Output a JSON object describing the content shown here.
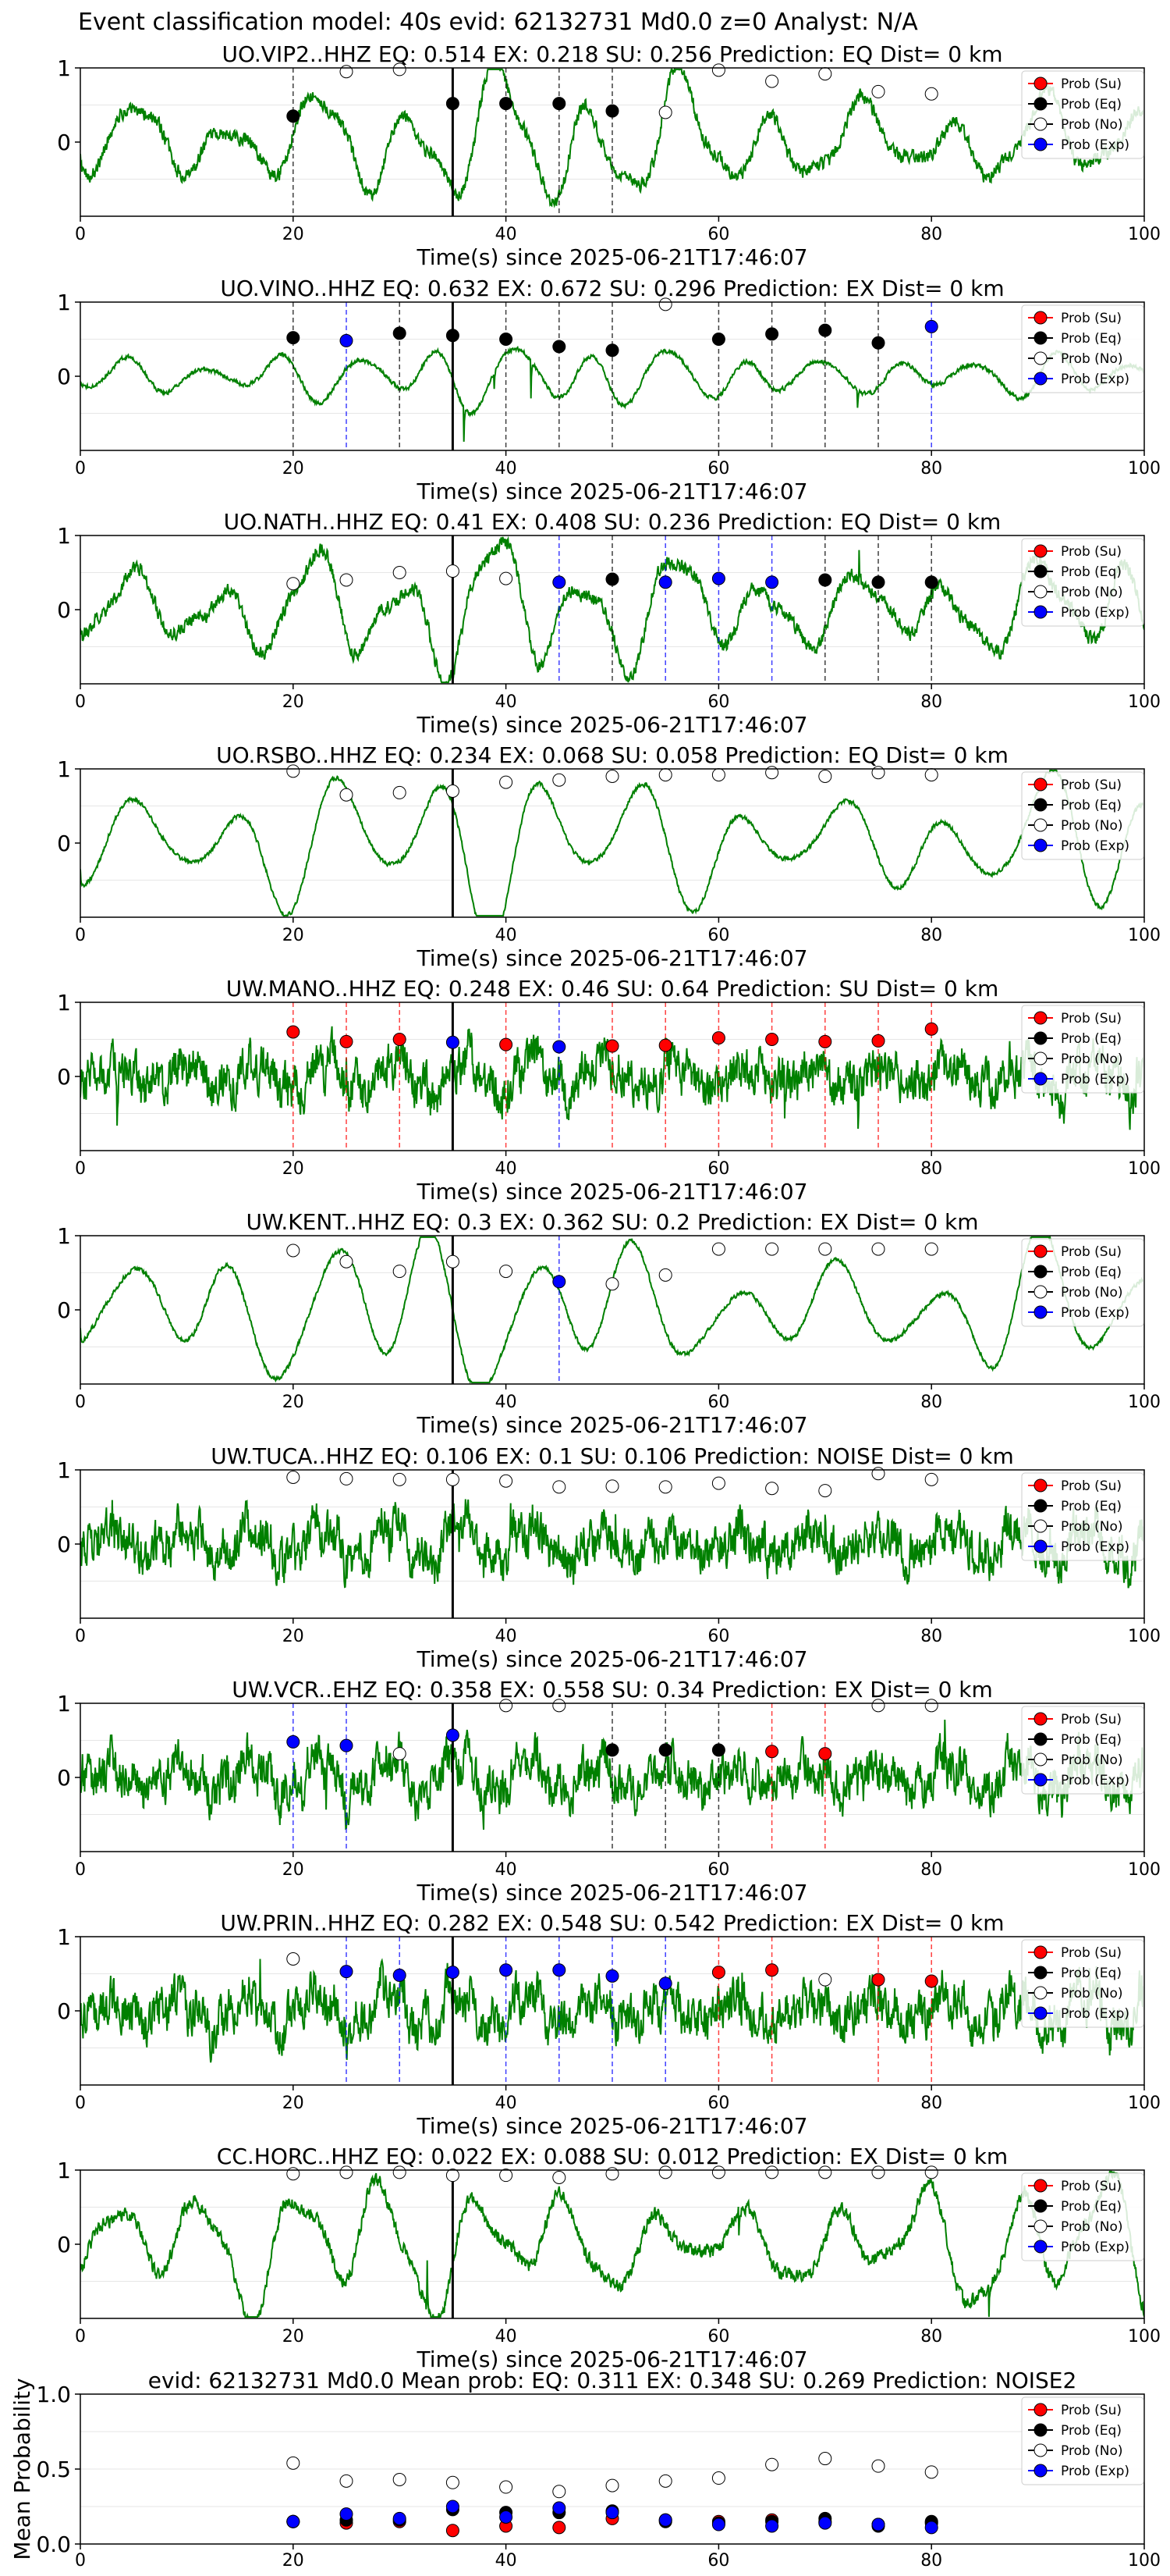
{
  "figure": {
    "suptitle": "Event classification model: 40s evid: 62132731 Md0.0 z=0 Analyst: N/A"
  },
  "legend": {
    "entries": [
      {
        "label": "Prob (Su)",
        "color": "#ff0000",
        "filled": true
      },
      {
        "label": "Prob (Eq)",
        "color": "#000000",
        "filled": true
      },
      {
        "label": "Prob (No)",
        "color": "#ffffff",
        "filled": false
      },
      {
        "label": "Prob (Exp)",
        "color": "#0000ff",
        "filled": true
      }
    ]
  },
  "colors": {
    "waveform": "#008000",
    "pick_line": "#000000",
    "su": "#ff0000",
    "eq": "#000000",
    "no": "#ffffff",
    "exp": "#0000ff",
    "axis": "#000000",
    "grid": "#e6e6e6"
  },
  "chart_data": [
    {
      "type": "line",
      "station": "UO.VIP2..HHZ",
      "title": "UO.VIP2..HHZ   EQ: 0.514  EX: 0.218  SU: 0.256   Prediction: EQ    Dist= 0 km",
      "xlabel": "Time(s) since 2025-06-21T17:46:07",
      "xlim": [
        0,
        100
      ],
      "ylim": [
        -1,
        1
      ],
      "xticks": [
        "0",
        "20",
        "40",
        "60",
        "80",
        "100"
      ],
      "yticks": [
        "1",
        "0"
      ],
      "waveform_style": "moderate",
      "pick_time": 35,
      "points": [
        {
          "x": 20,
          "y": 0.35,
          "cls": "eq"
        },
        {
          "x": 25,
          "y": 0.95,
          "cls": "no"
        },
        {
          "x": 30,
          "y": 0.98,
          "cls": "no"
        },
        {
          "x": 35,
          "y": 0.52,
          "cls": "eq"
        },
        {
          "x": 40,
          "y": 0.52,
          "cls": "eq"
        },
        {
          "x": 45,
          "y": 0.52,
          "cls": "eq"
        },
        {
          "x": 50,
          "y": 0.42,
          "cls": "eq"
        },
        {
          "x": 55,
          "y": 0.4,
          "cls": "no"
        },
        {
          "x": 60,
          "y": 0.97,
          "cls": "no"
        },
        {
          "x": 65,
          "y": 0.82,
          "cls": "no"
        },
        {
          "x": 70,
          "y": 0.92,
          "cls": "no"
        },
        {
          "x": 75,
          "y": 0.68,
          "cls": "no"
        },
        {
          "x": 80,
          "y": 0.65,
          "cls": "no"
        }
      ]
    },
    {
      "type": "line",
      "station": "UO.VINO..HHZ",
      "title": "UO.VINO..HHZ   EQ: 0.632  EX: 0.672  SU: 0.296   Prediction: EX    Dist= 0 km",
      "xlabel": "Time(s) since 2025-06-21T17:46:07",
      "xlim": [
        0,
        100
      ],
      "ylim": [
        -1,
        1
      ],
      "xticks": [
        "0",
        "20",
        "40",
        "60",
        "80",
        "100"
      ],
      "yticks": [
        "1",
        "0"
      ],
      "waveform_style": "low",
      "pick_time": 35,
      "points": [
        {
          "x": 20,
          "y": 0.52,
          "cls": "eq"
        },
        {
          "x": 25,
          "y": 0.48,
          "cls": "exp"
        },
        {
          "x": 30,
          "y": 0.58,
          "cls": "eq"
        },
        {
          "x": 35,
          "y": 0.55,
          "cls": "eq"
        },
        {
          "x": 40,
          "y": 0.5,
          "cls": "eq"
        },
        {
          "x": 45,
          "y": 0.4,
          "cls": "eq"
        },
        {
          "x": 50,
          "y": 0.35,
          "cls": "eq"
        },
        {
          "x": 55,
          "y": 0.97,
          "cls": "no"
        },
        {
          "x": 60,
          "y": 0.5,
          "cls": "eq"
        },
        {
          "x": 65,
          "y": 0.57,
          "cls": "eq"
        },
        {
          "x": 70,
          "y": 0.62,
          "cls": "eq"
        },
        {
          "x": 75,
          "y": 0.45,
          "cls": "eq"
        },
        {
          "x": 80,
          "y": 0.67,
          "cls": "exp"
        }
      ]
    },
    {
      "type": "line",
      "station": "UO.NATH..HHZ",
      "title": "UO.NATH..HHZ   EQ: 0.41  EX: 0.408  SU: 0.236   Prediction: EQ    Dist= 0 km",
      "xlabel": "Time(s) since 2025-06-21T17:46:07",
      "xlim": [
        0,
        100
      ],
      "ylim": [
        -1,
        1
      ],
      "xticks": [
        "0",
        "20",
        "40",
        "60",
        "80",
        "100"
      ],
      "yticks": [
        "1",
        "0"
      ],
      "waveform_style": "moderate",
      "pick_time": 35,
      "points": [
        {
          "x": 20,
          "y": 0.35,
          "cls": "no"
        },
        {
          "x": 25,
          "y": 0.4,
          "cls": "no"
        },
        {
          "x": 30,
          "y": 0.5,
          "cls": "no"
        },
        {
          "x": 35,
          "y": 0.52,
          "cls": "no"
        },
        {
          "x": 40,
          "y": 0.42,
          "cls": "no"
        },
        {
          "x": 45,
          "y": 0.37,
          "cls": "exp"
        },
        {
          "x": 50,
          "y": 0.41,
          "cls": "eq"
        },
        {
          "x": 55,
          "y": 0.37,
          "cls": "exp"
        },
        {
          "x": 60,
          "y": 0.42,
          "cls": "exp"
        },
        {
          "x": 65,
          "y": 0.37,
          "cls": "exp"
        },
        {
          "x": 70,
          "y": 0.4,
          "cls": "eq"
        },
        {
          "x": 75,
          "y": 0.37,
          "cls": "eq"
        },
        {
          "x": 80,
          "y": 0.37,
          "cls": "eq"
        }
      ]
    },
    {
      "type": "line",
      "station": "UO.RSBO..HHZ",
      "title": "UO.RSBO..HHZ   EQ: 0.234  EX: 0.068  SU: 0.058   Prediction: EQ    Dist= 0 km",
      "xlabel": "Time(s) since 2025-06-21T17:46:07",
      "xlim": [
        0,
        100
      ],
      "ylim": [
        -1,
        1
      ],
      "xticks": [
        "0",
        "20",
        "40",
        "60",
        "80",
        "100"
      ],
      "yticks": [
        "1",
        "0"
      ],
      "waveform_style": "smooth",
      "pick_time": 35,
      "points": [
        {
          "x": 20,
          "y": 0.97,
          "cls": "no"
        },
        {
          "x": 25,
          "y": 0.65,
          "cls": "no"
        },
        {
          "x": 30,
          "y": 0.68,
          "cls": "no"
        },
        {
          "x": 35,
          "y": 0.7,
          "cls": "no"
        },
        {
          "x": 40,
          "y": 0.82,
          "cls": "no"
        },
        {
          "x": 45,
          "y": 0.85,
          "cls": "no"
        },
        {
          "x": 50,
          "y": 0.9,
          "cls": "no"
        },
        {
          "x": 55,
          "y": 0.92,
          "cls": "no"
        },
        {
          "x": 60,
          "y": 0.92,
          "cls": "no"
        },
        {
          "x": 65,
          "y": 0.95,
          "cls": "no"
        },
        {
          "x": 70,
          "y": 0.9,
          "cls": "no"
        },
        {
          "x": 75,
          "y": 0.95,
          "cls": "no"
        },
        {
          "x": 80,
          "y": 0.92,
          "cls": "no"
        }
      ]
    },
    {
      "type": "line",
      "station": "UW.MANO..HHZ",
      "title": "UW.MANO..HHZ   EQ: 0.248  EX: 0.46  SU: 0.64   Prediction: SU    Dist= 0 km",
      "xlabel": "Time(s) since 2025-06-21T17:46:07",
      "xlim": [
        0,
        100
      ],
      "ylim": [
        -1,
        1
      ],
      "xticks": [
        "0",
        "20",
        "40",
        "60",
        "80",
        "100"
      ],
      "yticks": [
        "1",
        "0"
      ],
      "waveform_style": "noisy",
      "pick_time": 35,
      "points": [
        {
          "x": 20,
          "y": 0.6,
          "cls": "su"
        },
        {
          "x": 25,
          "y": 0.47,
          "cls": "su"
        },
        {
          "x": 30,
          "y": 0.5,
          "cls": "su"
        },
        {
          "x": 35,
          "y": 0.46,
          "cls": "exp"
        },
        {
          "x": 40,
          "y": 0.43,
          "cls": "su"
        },
        {
          "x": 45,
          "y": 0.4,
          "cls": "exp"
        },
        {
          "x": 50,
          "y": 0.41,
          "cls": "su"
        },
        {
          "x": 55,
          "y": 0.42,
          "cls": "su"
        },
        {
          "x": 60,
          "y": 0.52,
          "cls": "su"
        },
        {
          "x": 65,
          "y": 0.5,
          "cls": "su"
        },
        {
          "x": 70,
          "y": 0.47,
          "cls": "su"
        },
        {
          "x": 75,
          "y": 0.48,
          "cls": "su"
        },
        {
          "x": 80,
          "y": 0.64,
          "cls": "su"
        }
      ]
    },
    {
      "type": "line",
      "station": "UW.KENT..HHZ",
      "title": "UW.KENT..HHZ   EQ: 0.3  EX: 0.362  SU: 0.2   Prediction: EX    Dist= 0 km",
      "xlabel": "Time(s) since 2025-06-21T17:46:07",
      "xlim": [
        0,
        100
      ],
      "ylim": [
        -1,
        1
      ],
      "xticks": [
        "0",
        "20",
        "40",
        "60",
        "80",
        "100"
      ],
      "yticks": [
        "1",
        "0"
      ],
      "waveform_style": "smooth",
      "pick_time": 35,
      "points": [
        {
          "x": 20,
          "y": 0.8,
          "cls": "no"
        },
        {
          "x": 25,
          "y": 0.65,
          "cls": "no"
        },
        {
          "x": 30,
          "y": 0.52,
          "cls": "no"
        },
        {
          "x": 35,
          "y": 0.65,
          "cls": "no"
        },
        {
          "x": 40,
          "y": 0.52,
          "cls": "no"
        },
        {
          "x": 45,
          "y": 0.38,
          "cls": "exp"
        },
        {
          "x": 50,
          "y": 0.35,
          "cls": "no"
        },
        {
          "x": 55,
          "y": 0.47,
          "cls": "no"
        },
        {
          "x": 60,
          "y": 0.82,
          "cls": "no"
        },
        {
          "x": 65,
          "y": 0.82,
          "cls": "no"
        },
        {
          "x": 70,
          "y": 0.82,
          "cls": "no"
        },
        {
          "x": 75,
          "y": 0.82,
          "cls": "no"
        },
        {
          "x": 80,
          "y": 0.82,
          "cls": "no"
        }
      ]
    },
    {
      "type": "line",
      "station": "UW.TUCA..HHZ",
      "title": "UW.TUCA..HHZ   EQ: 0.106  EX: 0.1  SU: 0.106   Prediction: NOISE    Dist= 0 km",
      "xlabel": "Time(s) since 2025-06-21T17:46:07",
      "xlim": [
        0,
        100
      ],
      "ylim": [
        -1,
        1
      ],
      "xticks": [
        "0",
        "20",
        "40",
        "60",
        "80",
        "100"
      ],
      "yticks": [
        "1",
        "0"
      ],
      "waveform_style": "noisy",
      "pick_time": 35,
      "points": [
        {
          "x": 20,
          "y": 0.9,
          "cls": "no"
        },
        {
          "x": 25,
          "y": 0.88,
          "cls": "no"
        },
        {
          "x": 30,
          "y": 0.87,
          "cls": "no"
        },
        {
          "x": 35,
          "y": 0.87,
          "cls": "no"
        },
        {
          "x": 40,
          "y": 0.85,
          "cls": "no"
        },
        {
          "x": 45,
          "y": 0.77,
          "cls": "no"
        },
        {
          "x": 50,
          "y": 0.78,
          "cls": "no"
        },
        {
          "x": 55,
          "y": 0.77,
          "cls": "no"
        },
        {
          "x": 60,
          "y": 0.82,
          "cls": "no"
        },
        {
          "x": 65,
          "y": 0.75,
          "cls": "no"
        },
        {
          "x": 70,
          "y": 0.72,
          "cls": "no"
        },
        {
          "x": 75,
          "y": 0.95,
          "cls": "no"
        },
        {
          "x": 80,
          "y": 0.87,
          "cls": "no"
        }
      ]
    },
    {
      "type": "line",
      "station": "UW.VCR..EHZ",
      "title": "UW.VCR..EHZ   EQ: 0.358  EX: 0.558  SU: 0.34   Prediction: EX    Dist= 0 km",
      "xlabel": "Time(s) since 2025-06-21T17:46:07",
      "xlim": [
        0,
        100
      ],
      "ylim": [
        -1,
        1
      ],
      "xticks": [
        "0",
        "20",
        "40",
        "60",
        "80",
        "100"
      ],
      "yticks": [
        "1",
        "0"
      ],
      "waveform_style": "noisy",
      "pick_time": 35,
      "points": [
        {
          "x": 20,
          "y": 0.48,
          "cls": "exp"
        },
        {
          "x": 25,
          "y": 0.43,
          "cls": "exp"
        },
        {
          "x": 30,
          "y": 0.32,
          "cls": "no"
        },
        {
          "x": 35,
          "y": 0.57,
          "cls": "exp"
        },
        {
          "x": 40,
          "y": 0.97,
          "cls": "no"
        },
        {
          "x": 45,
          "y": 0.97,
          "cls": "no"
        },
        {
          "x": 50,
          "y": 0.37,
          "cls": "eq"
        },
        {
          "x": 55,
          "y": 0.37,
          "cls": "eq"
        },
        {
          "x": 60,
          "y": 0.37,
          "cls": "eq"
        },
        {
          "x": 65,
          "y": 0.35,
          "cls": "su"
        },
        {
          "x": 70,
          "y": 0.32,
          "cls": "su"
        },
        {
          "x": 75,
          "y": 0.97,
          "cls": "no"
        },
        {
          "x": 80,
          "y": 0.97,
          "cls": "no"
        }
      ]
    },
    {
      "type": "line",
      "station": "UW.PRIN..HHZ",
      "title": "UW.PRIN..HHZ   EQ: 0.282  EX: 0.548  SU: 0.542   Prediction: EX    Dist= 0 km",
      "xlabel": "Time(s) since 2025-06-21T17:46:07",
      "xlim": [
        0,
        100
      ],
      "ylim": [
        -1,
        1
      ],
      "xticks": [
        "0",
        "20",
        "40",
        "60",
        "80",
        "100"
      ],
      "yticks": [
        "1",
        "0"
      ],
      "waveform_style": "noisy",
      "pick_time": 35,
      "points": [
        {
          "x": 20,
          "y": 0.7,
          "cls": "no"
        },
        {
          "x": 25,
          "y": 0.53,
          "cls": "exp"
        },
        {
          "x": 30,
          "y": 0.48,
          "cls": "exp"
        },
        {
          "x": 35,
          "y": 0.52,
          "cls": "exp"
        },
        {
          "x": 40,
          "y": 0.55,
          "cls": "exp"
        },
        {
          "x": 45,
          "y": 0.55,
          "cls": "exp"
        },
        {
          "x": 50,
          "y": 0.47,
          "cls": "exp"
        },
        {
          "x": 55,
          "y": 0.37,
          "cls": "exp"
        },
        {
          "x": 60,
          "y": 0.52,
          "cls": "su"
        },
        {
          "x": 65,
          "y": 0.55,
          "cls": "su"
        },
        {
          "x": 70,
          "y": 0.42,
          "cls": "no"
        },
        {
          "x": 75,
          "y": 0.42,
          "cls": "su"
        },
        {
          "x": 80,
          "y": 0.4,
          "cls": "su"
        }
      ]
    },
    {
      "type": "line",
      "station": "CC.HORC..HHZ",
      "title": "CC.HORC..HHZ   EQ: 0.022  EX: 0.088  SU: 0.012   Prediction: EX    Dist= 0 km",
      "xlabel": "Time(s) since 2025-06-21T17:46:07",
      "xlim": [
        0,
        100
      ],
      "ylim": [
        -1,
        1
      ],
      "xticks": [
        "0",
        "20",
        "40",
        "60",
        "80",
        "100"
      ],
      "yticks": [
        "1",
        "0"
      ],
      "waveform_style": "moderate",
      "pick_time": 35,
      "points": [
        {
          "x": 20,
          "y": 0.95,
          "cls": "no"
        },
        {
          "x": 25,
          "y": 0.97,
          "cls": "no"
        },
        {
          "x": 30,
          "y": 0.97,
          "cls": "no"
        },
        {
          "x": 35,
          "y": 0.93,
          "cls": "no"
        },
        {
          "x": 40,
          "y": 0.93,
          "cls": "no"
        },
        {
          "x": 45,
          "y": 0.9,
          "cls": "no"
        },
        {
          "x": 50,
          "y": 0.95,
          "cls": "no"
        },
        {
          "x": 55,
          "y": 0.97,
          "cls": "no"
        },
        {
          "x": 60,
          "y": 0.97,
          "cls": "no"
        },
        {
          "x": 65,
          "y": 0.97,
          "cls": "no"
        },
        {
          "x": 70,
          "y": 0.97,
          "cls": "no"
        },
        {
          "x": 75,
          "y": 0.97,
          "cls": "no"
        },
        {
          "x": 80,
          "y": 0.97,
          "cls": "no"
        }
      ]
    },
    {
      "type": "scatter",
      "station": "mean",
      "title": "evid: 62132731  Md0.0   Mean prob:   EQ: 0.311  EX: 0.348  SU: 0.269   Prediction: NOISE2",
      "xlabel": "",
      "ylabel": "Mean Probability",
      "xlim": [
        0,
        100
      ],
      "ylim": [
        0,
        1
      ],
      "xticks": [
        "0",
        "20",
        "40",
        "60",
        "80",
        "100"
      ],
      "yticks": [
        "0.0",
        "0.5",
        "1.0"
      ],
      "series": [
        {
          "cls": "su",
          "x": [
            20,
            25,
            30,
            35,
            40,
            45,
            50,
            55,
            60,
            65,
            70,
            75,
            80
          ],
          "y": [
            0.15,
            0.14,
            0.15,
            0.09,
            0.12,
            0.11,
            0.17,
            0.16,
            0.15,
            0.16,
            0.15,
            0.13,
            0.14
          ]
        },
        {
          "cls": "eq",
          "x": [
            20,
            25,
            30,
            35,
            40,
            45,
            50,
            55,
            60,
            65,
            70,
            75,
            80
          ],
          "y": [
            0.15,
            0.16,
            0.16,
            0.23,
            0.21,
            0.21,
            0.22,
            0.15,
            0.14,
            0.15,
            0.17,
            0.12,
            0.15
          ]
        },
        {
          "cls": "no",
          "x": [
            20,
            25,
            30,
            35,
            40,
            45,
            50,
            55,
            60,
            65,
            70,
            75,
            80
          ],
          "y": [
            0.54,
            0.42,
            0.43,
            0.41,
            0.38,
            0.35,
            0.39,
            0.42,
            0.44,
            0.53,
            0.57,
            0.52,
            0.48
          ]
        },
        {
          "cls": "exp",
          "x": [
            20,
            25,
            30,
            35,
            40,
            45,
            50,
            55,
            60,
            65,
            70,
            75,
            80
          ],
          "y": [
            0.15,
            0.2,
            0.17,
            0.25,
            0.18,
            0.24,
            0.21,
            0.16,
            0.13,
            0.12,
            0.14,
            0.13,
            0.11
          ]
        }
      ]
    }
  ]
}
